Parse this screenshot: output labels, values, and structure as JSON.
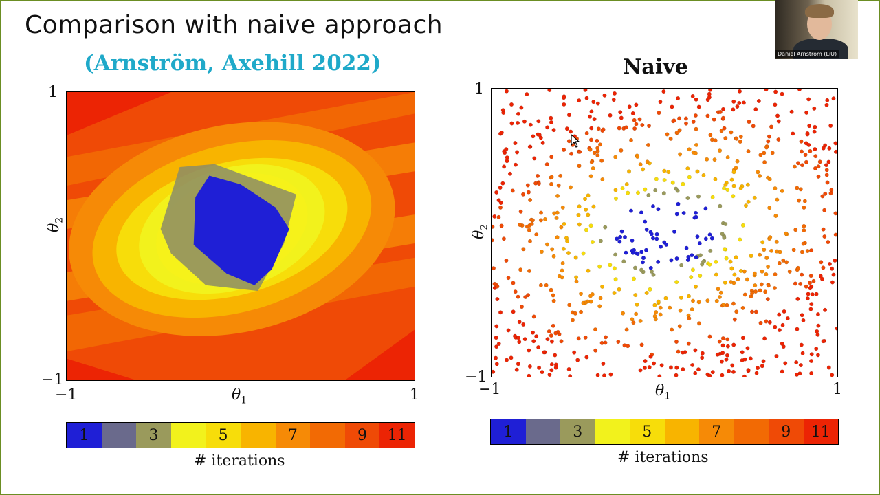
{
  "slide": {
    "title": "Comparison with naive approach",
    "citation": "(Arnström, Axehill 2022)"
  },
  "webcam": {
    "name": "Daniel Arnström (LiU)"
  },
  "colors": {
    "levels": [
      "#1f1fd6",
      "#6a6a8c",
      "#9a9a5c",
      "#f2f21c",
      "#f7dd0a",
      "#f8b400",
      "#f68a06",
      "#f26a04",
      "#ef4a06",
      "#ec2404"
    ],
    "border": "#6b8e23",
    "citation": "#1fa9c9"
  },
  "chart_data": [
    {
      "type": "heatmap",
      "title": "",
      "xlabel": "θ1",
      "ylabel": "θ2",
      "xlim": [
        -1,
        1
      ],
      "ylim": [
        -1,
        1
      ],
      "x_ticks": [
        "−1",
        "1"
      ],
      "y_ticks": [
        "1",
        "−1"
      ],
      "regions": [
        {
          "iterations": 11,
          "polygon": [
            [
              -1,
              0.7
            ],
            [
              -0.4,
              1
            ],
            [
              -1,
              1
            ]
          ]
        },
        {
          "iterations": 11,
          "polygon": [
            [
              0.6,
              -1
            ],
            [
              1,
              -0.65
            ],
            [
              1,
              -1
            ]
          ]
        },
        {
          "iterations": 11,
          "polygon": [
            [
              -1,
              -0.85
            ],
            [
              -0.6,
              -1
            ],
            [
              -1,
              -1
            ]
          ]
        },
        {
          "iterations": 3,
          "polygon": [
            [
              -0.46,
              0.05
            ],
            [
              -0.35,
              0.48
            ],
            [
              -0.15,
              0.5
            ],
            [
              0.32,
              0.29
            ],
            [
              0.25,
              -0.05
            ],
            [
              0.1,
              -0.38
            ],
            [
              -0.2,
              -0.34
            ],
            [
              -0.4,
              -0.12
            ]
          ]
        },
        {
          "iterations": 1,
          "polygon": [
            [
              -0.26,
              0.27
            ],
            [
              -0.18,
              0.42
            ],
            [
              0.0,
              0.36
            ],
            [
              0.2,
              0.2
            ],
            [
              0.28,
              0.05
            ],
            [
              0.18,
              -0.23
            ],
            [
              0.08,
              -0.34
            ],
            [
              -0.08,
              -0.26
            ],
            [
              -0.27,
              -0.06
            ]
          ]
        }
      ]
    },
    {
      "type": "scatter",
      "title": "Naive",
      "xlabel": "θ1",
      "ylabel": "θ2",
      "xlim": [
        -1,
        1
      ],
      "ylim": [
        -1,
        1
      ],
      "x_ticks": [
        "−1",
        "1"
      ],
      "y_ticks": [
        "1",
        "−1"
      ],
      "points": "≈800 uniformly sampled parameters; colour = # iterations (same legend as colorbar)"
    }
  ],
  "colorbar": {
    "label": "# iterations",
    "tick_labels": [
      "1",
      "",
      "3",
      "",
      "5",
      "7",
      "9",
      "11"
    ],
    "segment_labels": [
      "1",
      "",
      "3",
      "",
      "5",
      "",
      "7",
      "",
      "9",
      "11"
    ]
  }
}
